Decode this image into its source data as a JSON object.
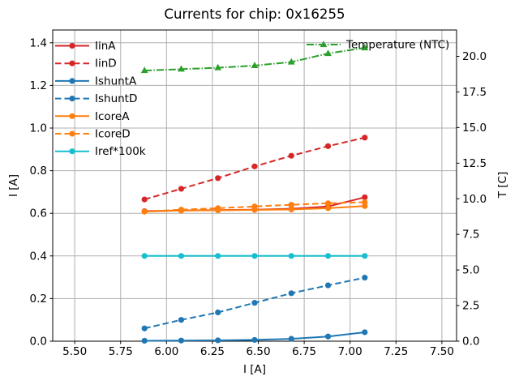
{
  "chart_data": {
    "type": "line",
    "title": "Currents for chip: 0x16255",
    "xlabel": "I [A]",
    "ylabel_left": "I [A]",
    "ylabel_right": "T [C]",
    "xlim": [
      5.38,
      7.58
    ],
    "ylim_left": [
      0,
      1.46
    ],
    "ylim_right": [
      0,
      21.85
    ],
    "grid": true,
    "grid_color": "#b0b0b0",
    "spine_color": "#000000",
    "xtick_values": [
      5.5,
      5.75,
      6.0,
      6.25,
      6.5,
      6.75,
      7.0,
      7.25,
      7.5
    ],
    "xtick_labels": [
      "5.50",
      "5.75",
      "6.00",
      "6.25",
      "6.50",
      "6.75",
      "7.00",
      "7.25",
      "7.50"
    ],
    "ytick_left_values": [
      0,
      0.2,
      0.4,
      0.6,
      0.8,
      1.0,
      1.2,
      1.4
    ],
    "ytick_left_labels": [
      "0.0",
      "0.2",
      "0.4",
      "0.6",
      "0.8",
      "1.0",
      "1.2",
      "1.4"
    ],
    "ytick_right_values": [
      0,
      2.5,
      5,
      7.5,
      10,
      12.5,
      15,
      17.5,
      20
    ],
    "ytick_right_labels": [
      "0.0",
      "2.5",
      "5.0",
      "7.5",
      "10.0",
      "12.5",
      "15.0",
      "17.5",
      "20.0"
    ],
    "x": [
      5.88,
      6.08,
      6.28,
      6.48,
      6.68,
      6.88,
      7.08
    ],
    "series": [
      {
        "name": "IinA",
        "axis": "left",
        "legend": "left",
        "color": "#d62728",
        "style": "solid",
        "marker": "circle",
        "values": [
          0.61,
          0.613,
          0.615,
          0.617,
          0.621,
          0.632,
          0.675
        ]
      },
      {
        "name": "IinD",
        "axis": "left",
        "legend": "left",
        "color": "#d62728",
        "style": "dashed",
        "marker": "circle",
        "values": [
          0.665,
          0.715,
          0.765,
          0.82,
          0.87,
          0.915,
          0.955
        ]
      },
      {
        "name": "IshuntA",
        "axis": "left",
        "legend": "left",
        "color": "#1f77b4",
        "style": "solid",
        "marker": "circle",
        "values": [
          0.002,
          0.003,
          0.004,
          0.006,
          0.011,
          0.022,
          0.042
        ]
      },
      {
        "name": "IshuntD",
        "axis": "left",
        "legend": "left",
        "color": "#1f77b4",
        "style": "dashed",
        "marker": "circle",
        "values": [
          0.06,
          0.1,
          0.135,
          0.18,
          0.225,
          0.262,
          0.298
        ]
      },
      {
        "name": "IcoreA",
        "axis": "left",
        "legend": "left",
        "color": "#ff7f0e",
        "style": "solid",
        "marker": "circle",
        "values": [
          0.608,
          0.613,
          0.614,
          0.616,
          0.618,
          0.624,
          0.634
        ]
      },
      {
        "name": "IcoreD",
        "axis": "left",
        "legend": "left",
        "color": "#ff7f0e",
        "style": "dashed",
        "marker": "circle",
        "values": [
          0.608,
          0.617,
          0.624,
          0.632,
          0.64,
          0.647,
          0.652
        ]
      },
      {
        "name": "Iref*100k",
        "axis": "left",
        "legend": "left",
        "color": "#17becf",
        "style": "solid",
        "marker": "circle",
        "values": [
          0.4,
          0.4,
          0.4,
          0.4,
          0.4,
          0.4,
          0.4
        ]
      },
      {
        "name": "Temperature (NTC)",
        "axis": "right",
        "legend": "right",
        "color": "#2ca02c",
        "style": "dashdot",
        "marker": "triangle",
        "values": [
          19.0,
          19.1,
          19.2,
          19.35,
          19.6,
          20.2,
          20.6
        ]
      }
    ]
  }
}
